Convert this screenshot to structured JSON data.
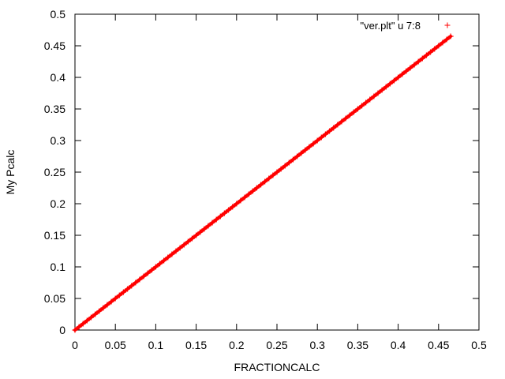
{
  "chart_data": {
    "type": "scatter",
    "xlabel": "FRACTIONCALC",
    "ylabel": "My Pcalc",
    "xlim": [
      0,
      0.5
    ],
    "ylim": [
      0,
      0.5
    ],
    "xticks": [
      "0",
      "0.05",
      "0.1",
      "0.15",
      "0.2",
      "0.25",
      "0.3",
      "0.35",
      "0.4",
      "0.45",
      "0.5"
    ],
    "yticks": [
      "0",
      "0.05",
      "0.1",
      "0.15",
      "0.2",
      "0.25",
      "0.3",
      "0.35",
      "0.4",
      "0.45",
      "0.5"
    ],
    "grid": false,
    "legend_position": "top-right",
    "marker": "+",
    "series": [
      {
        "name": "\"ver.plt\" u 7:8",
        "color": "#ff0000",
        "x": [
          0.0,
          0.005,
          0.01,
          0.015,
          0.02,
          0.025,
          0.03,
          0.035,
          0.04,
          0.045,
          0.05,
          0.055,
          0.06,
          0.065,
          0.07,
          0.075,
          0.08,
          0.085,
          0.09,
          0.095,
          0.1,
          0.105,
          0.11,
          0.115,
          0.12,
          0.125,
          0.13,
          0.135,
          0.14,
          0.145,
          0.15,
          0.155,
          0.16,
          0.165,
          0.17,
          0.175,
          0.18,
          0.185,
          0.19,
          0.195,
          0.2,
          0.205,
          0.21,
          0.215,
          0.22,
          0.225,
          0.23,
          0.235,
          0.24,
          0.245,
          0.25,
          0.255,
          0.26,
          0.265,
          0.27,
          0.275,
          0.28,
          0.285,
          0.29,
          0.295,
          0.3,
          0.305,
          0.31,
          0.315,
          0.32,
          0.325,
          0.33,
          0.335,
          0.34,
          0.345,
          0.35,
          0.355,
          0.36,
          0.365,
          0.37,
          0.375,
          0.38,
          0.385,
          0.39,
          0.395,
          0.4,
          0.405,
          0.41,
          0.415,
          0.42,
          0.425,
          0.43,
          0.435,
          0.44,
          0.445,
          0.45,
          0.455,
          0.46,
          0.465
        ],
        "y": [
          0.0,
          0.005,
          0.01,
          0.015,
          0.02,
          0.025,
          0.03,
          0.035,
          0.04,
          0.045,
          0.05,
          0.055,
          0.06,
          0.065,
          0.07,
          0.075,
          0.08,
          0.085,
          0.09,
          0.095,
          0.1,
          0.105,
          0.11,
          0.115,
          0.12,
          0.125,
          0.13,
          0.135,
          0.14,
          0.145,
          0.15,
          0.155,
          0.16,
          0.165,
          0.17,
          0.175,
          0.18,
          0.185,
          0.19,
          0.195,
          0.2,
          0.205,
          0.21,
          0.215,
          0.22,
          0.225,
          0.23,
          0.235,
          0.24,
          0.245,
          0.25,
          0.255,
          0.26,
          0.265,
          0.27,
          0.275,
          0.28,
          0.285,
          0.29,
          0.295,
          0.3,
          0.305,
          0.31,
          0.315,
          0.32,
          0.325,
          0.33,
          0.335,
          0.34,
          0.345,
          0.35,
          0.355,
          0.36,
          0.365,
          0.37,
          0.375,
          0.38,
          0.385,
          0.39,
          0.395,
          0.4,
          0.405,
          0.41,
          0.415,
          0.42,
          0.425,
          0.43,
          0.435,
          0.44,
          0.445,
          0.45,
          0.455,
          0.46,
          0.465
        ]
      }
    ]
  }
}
